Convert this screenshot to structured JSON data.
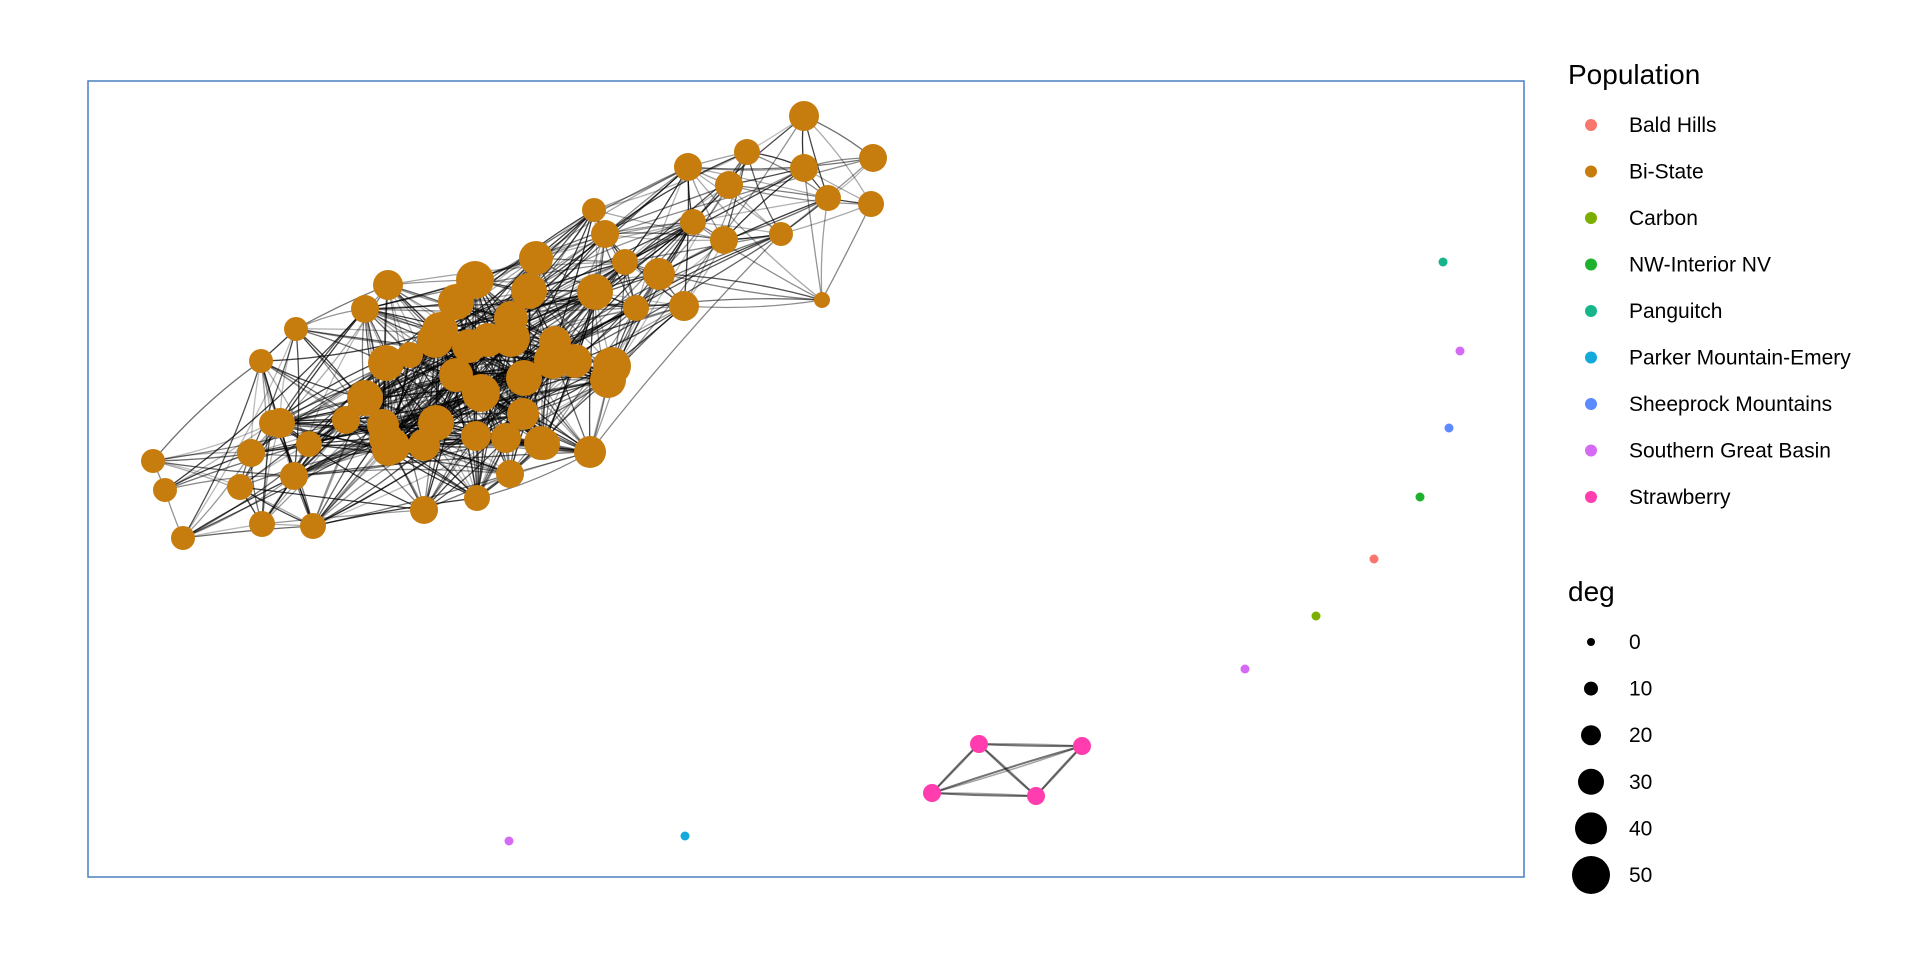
{
  "population_legend": {
    "title": "Population",
    "items": [
      {
        "label": "Bald Hills",
        "color": "#F8766D"
      },
      {
        "label": "Bi-State",
        "color": "#C77C0E"
      },
      {
        "label": "Carbon",
        "color": "#7CAE00"
      },
      {
        "label": "NW-Interior NV",
        "color": "#1EB12D"
      },
      {
        "label": "Panguitch",
        "color": "#17B68A"
      },
      {
        "label": "Parker Mountain-Emery",
        "color": "#14A9DB"
      },
      {
        "label": "Sheeprock Mountains",
        "color": "#5C8BFF"
      },
      {
        "label": "Southern Great Basin",
        "color": "#D56BF5"
      },
      {
        "label": "Strawberry",
        "color": "#FF3DAE"
      }
    ]
  },
  "degree_legend": {
    "title": "deg",
    "items": [
      {
        "label": "0",
        "value": 0
      },
      {
        "label": "10",
        "value": 10
      },
      {
        "label": "20",
        "value": 20
      },
      {
        "label": "30",
        "value": 30
      },
      {
        "label": "40",
        "value": 40
      },
      {
        "label": "50",
        "value": 50
      }
    ]
  },
  "network": {
    "clusters": [
      {
        "population": "Bi-State",
        "node_count": 71,
        "edge_style": "dense"
      },
      {
        "population": "Strawberry",
        "node_count": 4,
        "edge_style": "complete"
      }
    ],
    "isolates": [
      {
        "population": "Panguitch",
        "degree": 0
      },
      {
        "population": "Southern Great Basin",
        "degree": 0
      },
      {
        "population": "Sheeprock Mountains",
        "degree": 0
      },
      {
        "population": "NW-Interior NV",
        "degree": 0
      },
      {
        "population": "Bald Hills",
        "degree": 0
      },
      {
        "population": "Carbon",
        "degree": 0
      },
      {
        "population": "Southern Great Basin",
        "degree": 0
      },
      {
        "population": "Southern Great Basin",
        "degree": 0
      },
      {
        "population": "Parker Mountain-Emery",
        "degree": 0
      }
    ]
  }
}
